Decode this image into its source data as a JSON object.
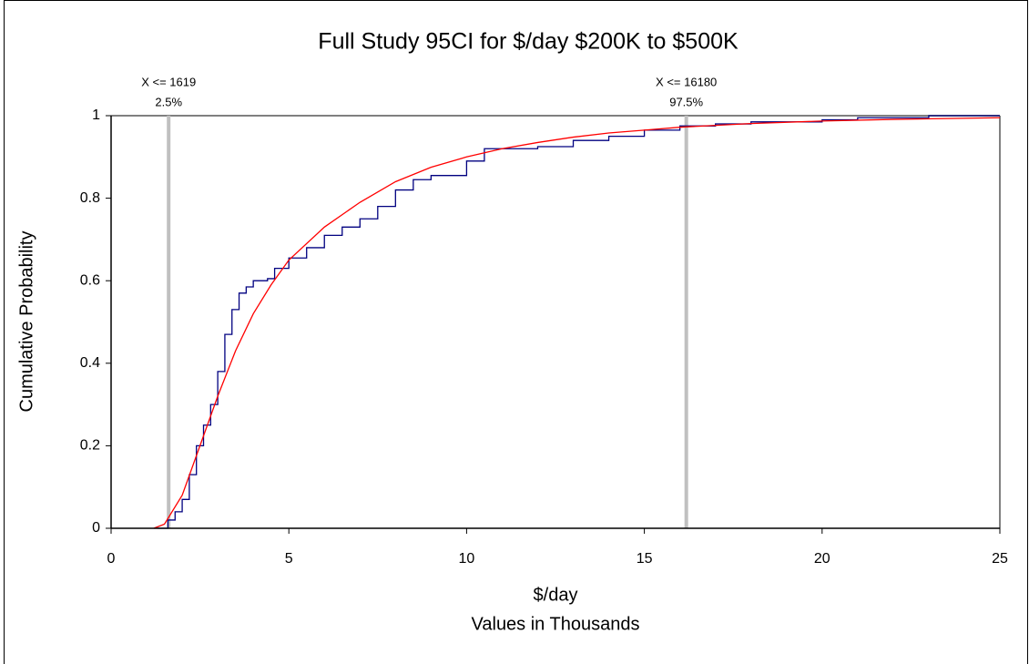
{
  "chart_data": {
    "type": "cdf",
    "title": "Full Study 95CI for $/day $200K to $500K",
    "x_label": "$/day",
    "x_sublabel": "Values in Thousands",
    "y_label": "Cumulative Probability",
    "xlim": [
      0,
      25
    ],
    "xticks": [
      0,
      5,
      10,
      15,
      20,
      25
    ],
    "ylim": [
      0,
      1
    ],
    "yticks": [
      0,
      0.2,
      0.4,
      0.6,
      0.8,
      1
    ],
    "series": [
      {
        "color": "#000080",
        "step": true,
        "x": [
          1.3,
          1.6,
          1.8,
          2.0,
          2.2,
          2.4,
          2.6,
          2.8,
          3.0,
          3.2,
          3.4,
          3.6,
          3.8,
          4.0,
          4.4,
          4.6,
          5.0,
          5.5,
          6.0,
          6.5,
          7.0,
          7.5,
          8.0,
          8.5,
          9.0,
          10.0,
          10.5,
          12.0,
          13.0,
          14.0,
          15.0,
          16.0,
          17.0,
          18.0,
          20.0,
          21.0,
          23.0,
          25.0
        ],
        "values": [
          0,
          0.02,
          0.04,
          0.07,
          0.13,
          0.2,
          0.25,
          0.3,
          0.38,
          0.47,
          0.53,
          0.57,
          0.585,
          0.6,
          0.605,
          0.63,
          0.655,
          0.68,
          0.71,
          0.73,
          0.75,
          0.78,
          0.82,
          0.845,
          0.855,
          0.89,
          0.92,
          0.925,
          0.94,
          0.95,
          0.965,
          0.975,
          0.98,
          0.985,
          0.99,
          0.995,
          1.0,
          1.0
        ]
      },
      {
        "color": "#ff0000",
        "step": false,
        "x": [
          1.2,
          1.5,
          2.0,
          2.5,
          3.0,
          3.5,
          4.0,
          4.5,
          5.0,
          6.0,
          7.0,
          8.0,
          9.0,
          10.0,
          11.0,
          12.0,
          13.0,
          14.0,
          15.0,
          16.0,
          18.0,
          20.0,
          22.0,
          25.0
        ],
        "values": [
          0,
          0.01,
          0.08,
          0.2,
          0.32,
          0.43,
          0.52,
          0.59,
          0.65,
          0.73,
          0.79,
          0.84,
          0.875,
          0.9,
          0.92,
          0.935,
          0.948,
          0.958,
          0.965,
          0.972,
          0.981,
          0.987,
          0.991,
          0.995
        ]
      }
    ],
    "markers": [
      {
        "x": 1.619,
        "x_label": "X <= 1619",
        "p_label": "2.5%"
      },
      {
        "x": 16.18,
        "x_label": "X <= 16180",
        "p_label": "97.5%"
      }
    ],
    "marker_color": "#c0c0c0"
  }
}
